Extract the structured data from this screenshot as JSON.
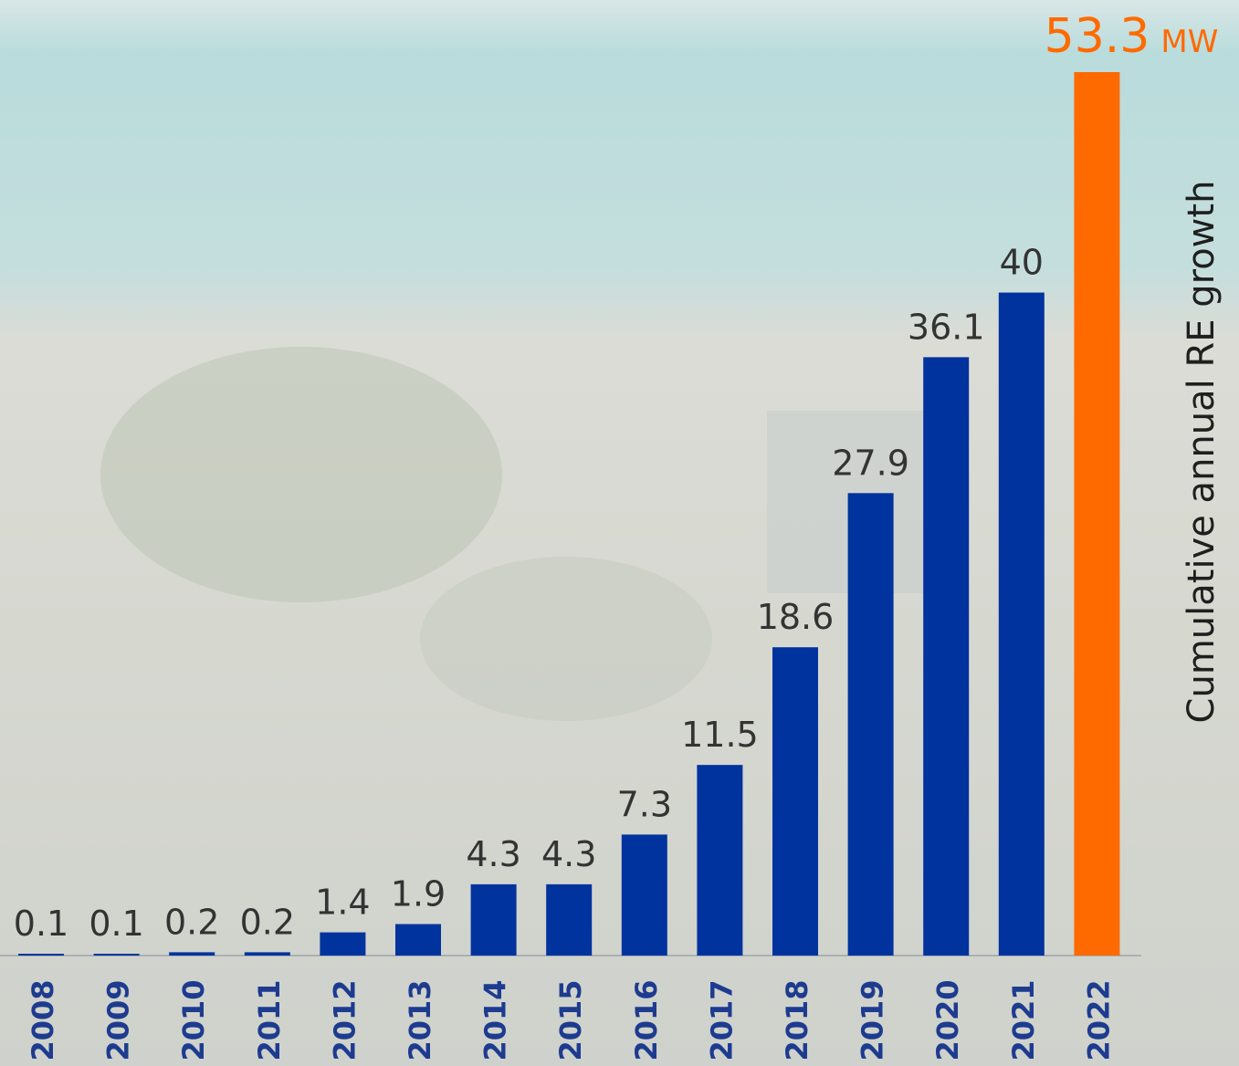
{
  "chart_data": {
    "type": "bar",
    "axis_label": "Cumulative annual RE growth",
    "unit": "MW",
    "categories": [
      "2008",
      "2009",
      "2010",
      "2011",
      "2012",
      "2013",
      "2014",
      "2015",
      "2016",
      "2017",
      "2018",
      "2019",
      "2020",
      "2021",
      "2022"
    ],
    "values": [
      0.1,
      0.1,
      0.2,
      0.2,
      1.4,
      1.9,
      4.3,
      4.3,
      7.3,
      11.5,
      18.6,
      27.9,
      36.1,
      40,
      53.3
    ],
    "colors": [
      "#00339e",
      "#00339e",
      "#00339e",
      "#00339e",
      "#00339e",
      "#00339e",
      "#00339e",
      "#00339e",
      "#00339e",
      "#00339e",
      "#00339e",
      "#00339e",
      "#00339e",
      "#00339e",
      "#ff6a00"
    ]
  }
}
